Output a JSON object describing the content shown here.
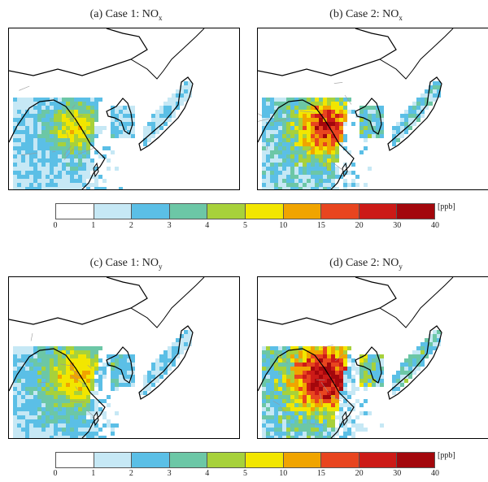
{
  "panels": [
    {
      "id": "a",
      "label_prefix": "(a) Case 1: NO",
      "label_sub": "x",
      "intensity": 0.55,
      "extent": 0.6
    },
    {
      "id": "b",
      "label_prefix": "(b) Case 2: NO",
      "label_sub": "x",
      "intensity": 0.9,
      "extent": 0.7
    },
    {
      "id": "c",
      "label_prefix": "(c) Case 1: NO",
      "label_sub": "y",
      "intensity": 0.6,
      "extent": 1.0
    },
    {
      "id": "d",
      "label_prefix": "(d) Case 2: NO",
      "label_sub": "y",
      "intensity": 1.0,
      "extent": 1.1
    }
  ],
  "colorbar": {
    "unit": "[ppb]",
    "ticks": [
      "0",
      "1",
      "2",
      "3",
      "4",
      "5",
      "10",
      "15",
      "20",
      "30",
      "40"
    ],
    "colors": [
      "#ffffff",
      "#c6e8f5",
      "#5bbfe6",
      "#6cc7a6",
      "#a7d13b",
      "#f2e600",
      "#f0a400",
      "#e8451f",
      "#cc1a17",
      "#a3070c"
    ]
  }
}
